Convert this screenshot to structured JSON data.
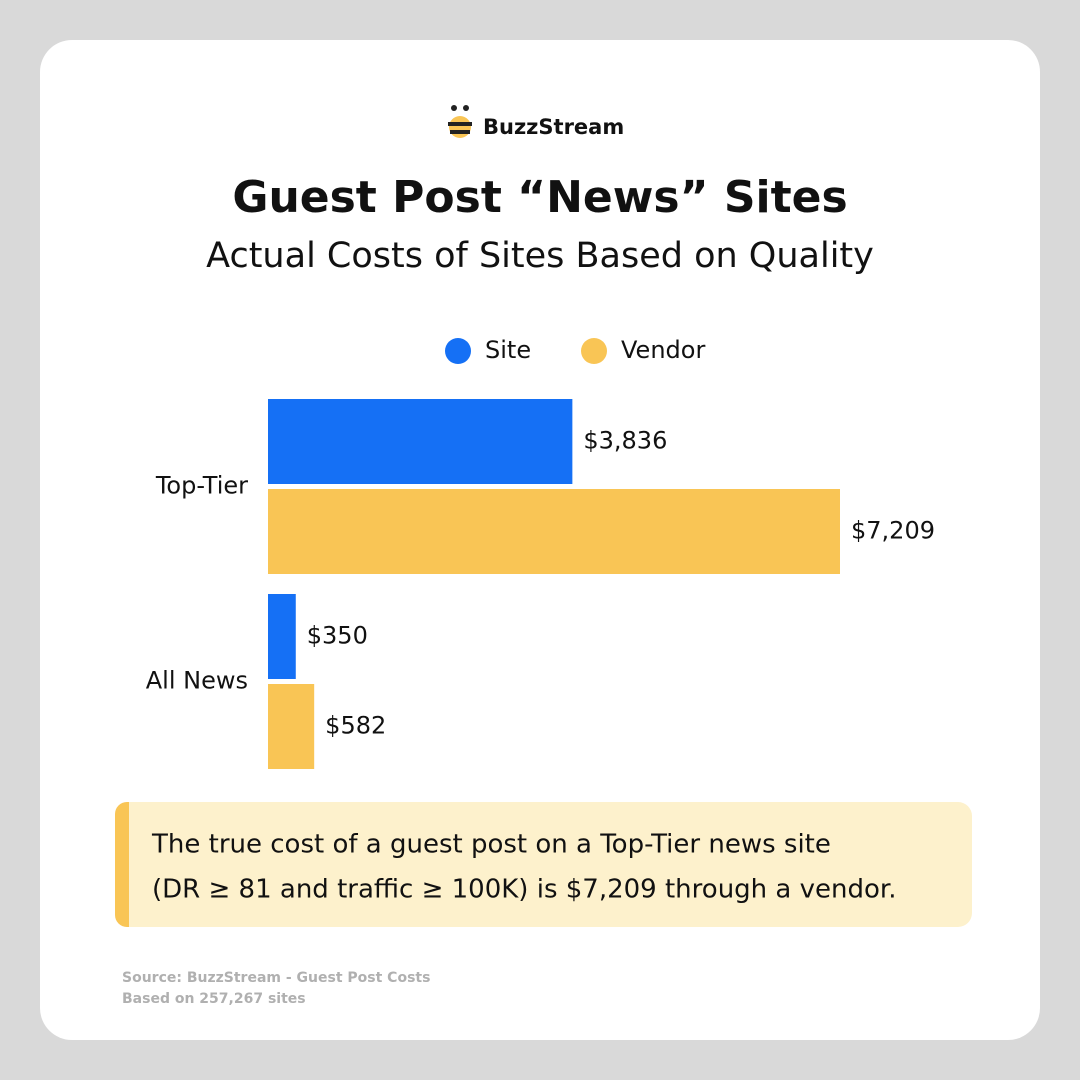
{
  "brand": "BuzzStream",
  "chart_data": {
    "type": "bar",
    "orientation": "horizontal",
    "title": "Guest Post “News” Sites",
    "subtitle": "Actual Costs of Sites Based on Quality",
    "categories": [
      "Top-Tier",
      "All News"
    ],
    "series": [
      {
        "name": "Site",
        "color": "#1570f5",
        "values": [
          3836,
          350
        ],
        "value_labels": [
          "$3,836",
          "$350"
        ]
      },
      {
        "name": "Vendor",
        "color": "#f9c555",
        "values": [
          7209,
          582
        ],
        "value_labels": [
          "$7,209",
          "$582"
        ]
      }
    ]
  },
  "callout": {
    "lines": [
      "The true cost of a guest post on a Top-Tier news site",
      "(DR ≥ 81 and traffic ≥ 100K) is $7,209 through a vendor."
    ]
  },
  "footer": {
    "source": "Source: BuzzStream - Guest Post Costs",
    "note": "Based on 257,267 sites"
  }
}
